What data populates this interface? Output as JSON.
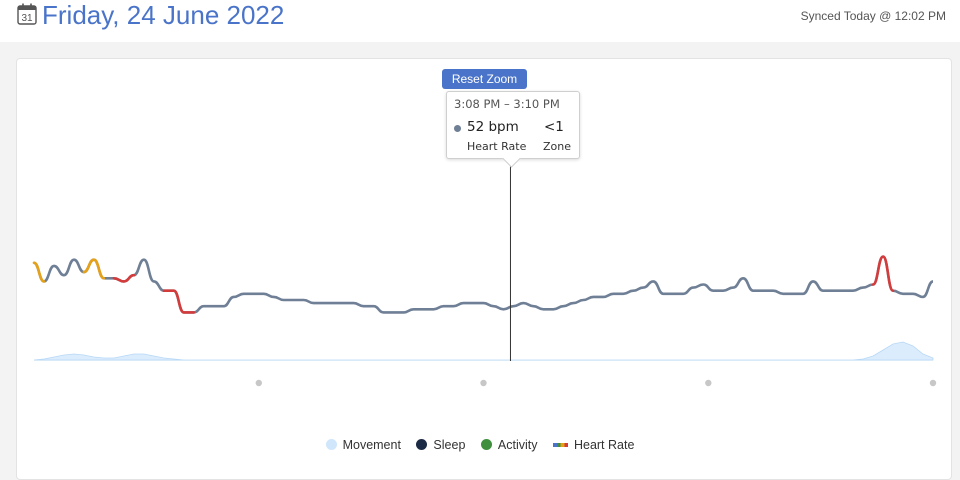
{
  "header": {
    "calendar_icon": "calendar-icon",
    "calendar_day": "31",
    "title": "Friday, 24 June 2022",
    "sync_status": "Synced Today @ 12:02 PM"
  },
  "colors": {
    "accent": "#4a74c9",
    "heart_rate_line": "#6f7f95",
    "movement": "#cfe6fb",
    "sleep": "#1c2b45",
    "activity": "#3f8f3f",
    "zone_orange": "#e6a117",
    "zone_red": "#d43c3c",
    "zone_green": "#3f8f3f"
  },
  "reset_zoom_label": "Reset Zoom",
  "tooltip": {
    "time_range": "3:08 PM – 3:10 PM",
    "bpm": "52 bpm",
    "zone_value": "<1",
    "hr_label": "Heart Rate",
    "zone_label": "Zone"
  },
  "chart_data": {
    "type": "line",
    "x": [
      0,
      10,
      20,
      30,
      40,
      50,
      60,
      70,
      80,
      90,
      100,
      110,
      120,
      130,
      140,
      150,
      160,
      170,
      180,
      190,
      200,
      210,
      220,
      230,
      240,
      250,
      260,
      270,
      280,
      290,
      300,
      310,
      320,
      330,
      340,
      350,
      360,
      370,
      380,
      390,
      400,
      410,
      420,
      430,
      440,
      450,
      460,
      470,
      480,
      490,
      500,
      510,
      520,
      530,
      540,
      550,
      560,
      570,
      580,
      590,
      600,
      610,
      620,
      630,
      640,
      650,
      660,
      670,
      680,
      690,
      700,
      710,
      720,
      730,
      740,
      750,
      760,
      770,
      780,
      790,
      800,
      810,
      820,
      830,
      840,
      850,
      860,
      870,
      880,
      890,
      900
    ],
    "series": [
      {
        "name": "Heart Rate",
        "values": [
          72,
          66,
          71,
          68,
          73,
          69,
          73,
          67,
          67,
          66,
          68,
          73,
          66,
          63,
          63,
          56,
          56,
          58,
          58,
          58,
          61,
          62,
          62,
          62,
          61,
          60,
          60,
          60,
          59,
          59,
          59,
          59,
          59,
          58,
          58,
          56,
          56,
          56,
          57,
          57,
          57,
          58,
          58,
          59,
          59,
          59,
          58,
          57,
          58,
          59,
          58,
          57,
          57,
          58,
          59,
          60,
          61,
          61,
          62,
          62,
          63,
          64,
          66,
          62,
          62,
          62,
          64,
          65,
          63,
          63,
          64,
          67,
          63,
          63,
          63,
          62,
          62,
          62,
          66,
          63,
          63,
          63,
          63,
          64,
          65,
          74,
          63,
          62,
          62,
          61,
          66
        ]
      },
      {
        "name": "Movement",
        "values": [
          0,
          1,
          3,
          5,
          6,
          5,
          3,
          2,
          2,
          4,
          6,
          6,
          4,
          2,
          1,
          0,
          0,
          0,
          0,
          0,
          0,
          0,
          0,
          0,
          0,
          0,
          0,
          0,
          0,
          0,
          0,
          0,
          0,
          0,
          0,
          0,
          0,
          0,
          0,
          0,
          0,
          0,
          0,
          0,
          0,
          0,
          0,
          0,
          0,
          0,
          0,
          0,
          0,
          0,
          0,
          0,
          0,
          0,
          0,
          0,
          0,
          0,
          0,
          0,
          0,
          0,
          0,
          0,
          0,
          0,
          0,
          0,
          0,
          0,
          0,
          0,
          0,
          0,
          0,
          0,
          0,
          0,
          0,
          1,
          4,
          10,
          16,
          18,
          14,
          6,
          2
        ]
      }
    ],
    "heart_rate_zones": [
      {
        "x_from": 0,
        "x_to": 10,
        "color": "#e6a117"
      },
      {
        "x_from": 50,
        "x_to": 70,
        "color": "#e6a117"
      },
      {
        "x_from": 80,
        "x_to": 100,
        "color": "#d43c3c"
      },
      {
        "x_from": 130,
        "x_to": 160,
        "color": "#d43c3c"
      },
      {
        "x_from": 840,
        "x_to": 860,
        "color": "#d43c3c"
      }
    ],
    "crosshair_x": 477,
    "legend_position": "bottom-center",
    "legend": [
      {
        "label": "Movement",
        "color": "#cfe6fb",
        "icon": "dot"
      },
      {
        "label": "Sleep",
        "color": "#1c2b45",
        "icon": "dot"
      },
      {
        "label": "Activity",
        "color": "#3f8f3f",
        "icon": "dot"
      },
      {
        "label": "Heart Rate",
        "icon": "multicolor-bar"
      }
    ]
  }
}
